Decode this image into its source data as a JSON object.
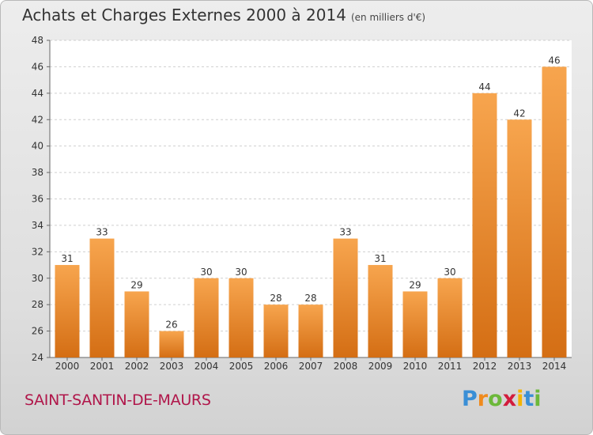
{
  "title": "Achats et Charges Externes 2000 à 2014",
  "unit_label": "(en milliers d'€)",
  "city": "SAINT-SANTIN-DE-MAURS",
  "logo": {
    "letters": [
      "P",
      "r",
      "o",
      "x",
      "i",
      "t",
      "i"
    ],
    "colors": [
      "#3a8fd6",
      "#f08a1c",
      "#6cb83a",
      "#d21c3c",
      "#f4b400",
      "#3a8fd6",
      "#6cb83a"
    ]
  },
  "colors": {
    "bar_top": "#f7a54e",
    "bar_bottom": "#d46e14",
    "city": "#b0164a"
  },
  "chart_data": {
    "type": "bar",
    "title": "Achats et Charges Externes 2000 à 2014",
    "categories": [
      "2000",
      "2001",
      "2002",
      "2003",
      "2004",
      "2005",
      "2006",
      "2007",
      "2008",
      "2009",
      "2010",
      "2011",
      "2012",
      "2013",
      "2014"
    ],
    "values": [
      31,
      33,
      29,
      26,
      30,
      30,
      28,
      28,
      33,
      31,
      29,
      30,
      44,
      42,
      46
    ],
    "ylim": [
      24,
      48
    ],
    "yticks": [
      24,
      26,
      28,
      30,
      32,
      34,
      36,
      38,
      40,
      42,
      44,
      46,
      48
    ],
    "grid": true,
    "xlabel": "",
    "ylabel": ""
  }
}
